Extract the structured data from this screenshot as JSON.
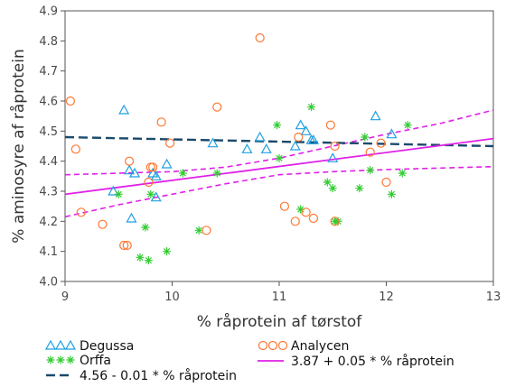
{
  "chart_data": {
    "type": "scatter",
    "xlabel": "% råprotein af tørstof",
    "ylabel": "% aminosyre af råprotein",
    "xlim": [
      9,
      13
    ],
    "ylim": [
      4.0,
      4.9
    ],
    "x_ticks": [
      "9",
      "10",
      "11",
      "12",
      "13"
    ],
    "y_ticks": [
      "4.0",
      "4.1",
      "4.2",
      "4.3",
      "4.4",
      "4.5",
      "4.6",
      "4.7",
      "4.8",
      "4.9"
    ],
    "grid": false,
    "legend_position": "bottom",
    "series": [
      {
        "name": "Degussa",
        "marker": "triangle",
        "color": "#1f9fe0",
        "points": [
          [
            9.45,
            4.3
          ],
          [
            9.55,
            4.57
          ],
          [
            9.6,
            4.37
          ],
          [
            9.62,
            4.21
          ],
          [
            9.65,
            4.36
          ],
          [
            9.82,
            4.36
          ],
          [
            9.85,
            4.35
          ],
          [
            9.85,
            4.28
          ],
          [
            9.95,
            4.39
          ],
          [
            10.38,
            4.46
          ],
          [
            10.7,
            4.44
          ],
          [
            10.82,
            4.48
          ],
          [
            10.88,
            4.44
          ],
          [
            11.15,
            4.45
          ],
          [
            11.2,
            4.52
          ],
          [
            11.25,
            4.5
          ],
          [
            11.3,
            4.47
          ],
          [
            11.32,
            4.47
          ],
          [
            11.5,
            4.41
          ],
          [
            11.9,
            4.55
          ],
          [
            12.05,
            4.49
          ]
        ]
      },
      {
        "name": "Orffa",
        "marker": "asterisk",
        "color": "#33cc33",
        "points": [
          [
            9.5,
            4.29
          ],
          [
            9.7,
            4.08
          ],
          [
            9.75,
            4.18
          ],
          [
            9.78,
            4.07
          ],
          [
            9.8,
            4.29
          ],
          [
            9.95,
            4.1
          ],
          [
            10.1,
            4.36
          ],
          [
            10.25,
            4.17
          ],
          [
            10.42,
            4.36
          ],
          [
            10.98,
            4.52
          ],
          [
            11.0,
            4.41
          ],
          [
            11.2,
            4.24
          ],
          [
            11.3,
            4.58
          ],
          [
            11.45,
            4.33
          ],
          [
            11.5,
            4.31
          ],
          [
            11.52,
            4.2
          ],
          [
            11.55,
            4.2
          ],
          [
            11.75,
            4.31
          ],
          [
            11.8,
            4.48
          ],
          [
            11.85,
            4.37
          ],
          [
            12.05,
            4.29
          ],
          [
            12.2,
            4.52
          ],
          [
            12.15,
            4.36
          ]
        ]
      },
      {
        "name": "Analycen",
        "marker": "circle",
        "color": "#ff7733",
        "points": [
          [
            9.05,
            4.6
          ],
          [
            9.1,
            4.44
          ],
          [
            9.15,
            4.23
          ],
          [
            9.35,
            4.19
          ],
          [
            9.55,
            4.12
          ],
          [
            9.58,
            4.12
          ],
          [
            9.6,
            4.4
          ],
          [
            9.78,
            4.33
          ],
          [
            9.8,
            4.38
          ],
          [
            9.82,
            4.38
          ],
          [
            9.9,
            4.53
          ],
          [
            9.98,
            4.46
          ],
          [
            10.32,
            4.17
          ],
          [
            10.42,
            4.58
          ],
          [
            10.82,
            4.81
          ],
          [
            11.05,
            4.25
          ],
          [
            11.15,
            4.2
          ],
          [
            11.18,
            4.48
          ],
          [
            11.25,
            4.23
          ],
          [
            11.32,
            4.21
          ],
          [
            11.48,
            4.52
          ],
          [
            11.52,
            4.45
          ],
          [
            11.52,
            4.2
          ],
          [
            11.85,
            4.43
          ],
          [
            11.95,
            4.46
          ],
          [
            12.0,
            4.33
          ]
        ]
      }
    ],
    "fit_lines": [
      {
        "name": "4.56 - 0.01 * % råprotein",
        "style": "longdash",
        "color": "#1a4a6b",
        "points": [
          [
            9,
            4.48
          ],
          [
            13,
            4.45
          ]
        ]
      },
      {
        "name": "3.87 + 0.05 * % råprotein",
        "style": "solid",
        "color": "#e020e8",
        "points": [
          [
            9,
            4.29
          ],
          [
            13,
            4.475
          ]
        ]
      }
    ],
    "confidence_band": {
      "color": "#e020e8",
      "style": "dashed",
      "upper": [
        [
          9,
          4.355
        ],
        [
          10,
          4.365
        ],
        [
          10.5,
          4.38
        ],
        [
          11,
          4.41
        ],
        [
          11.5,
          4.45
        ],
        [
          12,
          4.49
        ],
        [
          12.5,
          4.525
        ],
        [
          13,
          4.57
        ]
      ],
      "lower": [
        [
          9,
          4.215
        ],
        [
          9.5,
          4.255
        ],
        [
          10,
          4.29
        ],
        [
          10.5,
          4.325
        ],
        [
          11,
          4.355
        ],
        [
          11.5,
          4.365
        ],
        [
          12,
          4.372
        ],
        [
          12.5,
          4.377
        ],
        [
          13,
          4.382
        ]
      ]
    }
  }
}
